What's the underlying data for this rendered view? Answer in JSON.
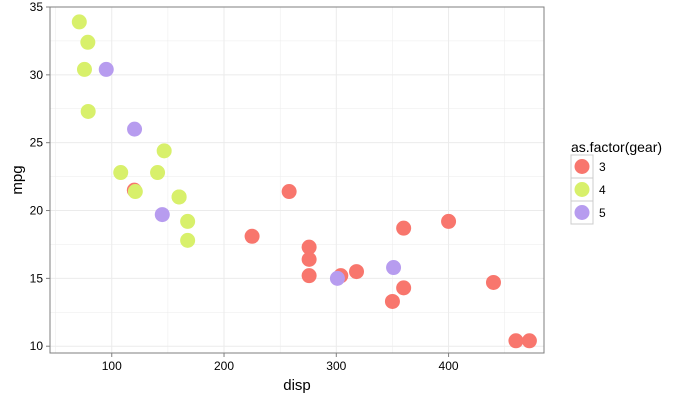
{
  "chart_data": {
    "type": "scatter",
    "xlabel": "disp",
    "ylabel": "mpg",
    "xlim": [
      45,
      485
    ],
    "ylim": [
      9.5,
      35
    ],
    "x_ticks": [
      100,
      200,
      300,
      400
    ],
    "y_ticks": [
      10,
      15,
      20,
      25,
      30,
      35
    ],
    "grid": true,
    "legend": {
      "title": "as.factor(gear)",
      "placement": "right",
      "entries": [
        {
          "label": "3",
          "color": "#F8766D"
        },
        {
          "label": "4",
          "color": "#D8F06B"
        },
        {
          "label": "5",
          "color": "#B79CEF"
        }
      ]
    },
    "series": [
      {
        "name": "3",
        "color": "#F8766D",
        "points": [
          {
            "x": 258,
            "y": 21.4
          },
          {
            "x": 360,
            "y": 18.7
          },
          {
            "x": 225,
            "y": 18.1
          },
          {
            "x": 360,
            "y": 14.3
          },
          {
            "x": 275.8,
            "y": 16.4
          },
          {
            "x": 275.8,
            "y": 17.3
          },
          {
            "x": 275.8,
            "y": 15.2
          },
          {
            "x": 472,
            "y": 10.4
          },
          {
            "x": 460,
            "y": 10.4
          },
          {
            "x": 440,
            "y": 14.7
          },
          {
            "x": 120.1,
            "y": 21.5
          },
          {
            "x": 318,
            "y": 15.5
          },
          {
            "x": 304,
            "y": 15.2
          },
          {
            "x": 350,
            "y": 13.3
          },
          {
            "x": 400,
            "y": 19.2
          }
        ]
      },
      {
        "name": "4",
        "color": "#D8F06B",
        "points": [
          {
            "x": 160,
            "y": 21.0
          },
          {
            "x": 160,
            "y": 21.0
          },
          {
            "x": 108,
            "y": 22.8
          },
          {
            "x": 146.7,
            "y": 24.4
          },
          {
            "x": 140.8,
            "y": 22.8
          },
          {
            "x": 167.6,
            "y": 19.2
          },
          {
            "x": 167.6,
            "y": 17.8
          },
          {
            "x": 78.7,
            "y": 32.4
          },
          {
            "x": 75.7,
            "y": 30.4
          },
          {
            "x": 71.1,
            "y": 33.9
          },
          {
            "x": 79,
            "y": 27.3
          },
          {
            "x": 121,
            "y": 21.4
          }
        ]
      },
      {
        "name": "5",
        "color": "#B79CEF",
        "points": [
          {
            "x": 120.3,
            "y": 26.0
          },
          {
            "x": 95.1,
            "y": 30.4
          },
          {
            "x": 351,
            "y": 15.8
          },
          {
            "x": 145,
            "y": 19.7
          },
          {
            "x": 301,
            "y": 15.0
          }
        ]
      }
    ]
  }
}
